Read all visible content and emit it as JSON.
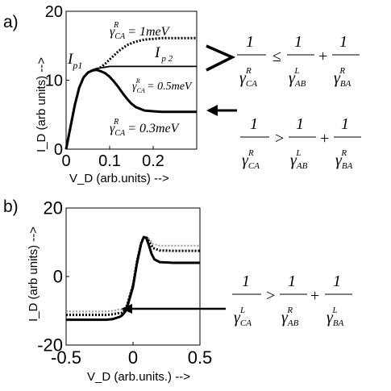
{
  "panels": [
    {
      "label": "a)",
      "chart_data": {
        "type": "line",
        "xlabel": "V_D (arb.units) -->",
        "ylabel": "I_D (arb units) -->",
        "xlim": [
          0,
          0.3
        ],
        "ylim": [
          0,
          20
        ],
        "xticks": [
          "0",
          "0.1",
          "0.2"
        ],
        "xtick_values": [
          0,
          0.1,
          0.2
        ],
        "yticks": [
          "0",
          "10",
          "20"
        ],
        "ytick_values": [
          0,
          10,
          20
        ],
        "grid": false,
        "series": [
          {
            "name": "γ_CA^R = 1meV",
            "style": "dotted",
            "x": [
              0,
              0.01,
              0.02,
              0.03,
              0.04,
              0.05,
              0.06,
              0.07,
              0.08,
              0.09,
              0.1,
              0.12,
              0.14,
              0.16,
              0.18,
              0.2,
              0.22,
              0.25,
              0.28,
              0.3
            ],
            "y": [
              0,
              3.2,
              6.4,
              8.9,
              10.4,
              11.1,
              11.4,
              11.6,
              11.9,
              12.4,
              13.0,
              14.2,
              15.1,
              15.6,
              15.9,
              16.0,
              16.1,
              16.1,
              16.1,
              16.1
            ]
          },
          {
            "name": "I_p2",
            "style": "thin",
            "x": [
              0,
              0.01,
              0.02,
              0.03,
              0.04,
              0.05,
              0.06,
              0.07,
              0.08,
              0.09,
              0.1,
              0.12,
              0.15,
              0.2,
              0.25,
              0.3
            ],
            "y": [
              0,
              3.2,
              6.4,
              8.9,
              10.4,
              11.1,
              11.5,
              11.7,
              11.8,
              11.9,
              12.0,
              12.0,
              12.0,
              12.0,
              12.0,
              12.0
            ]
          },
          {
            "name": "γ_CA^R = 0.5meV",
            "style": "solid",
            "x": [
              0,
              0.01,
              0.02,
              0.03,
              0.04,
              0.05,
              0.06,
              0.07,
              0.08,
              0.09,
              0.1,
              0.11,
              0.12,
              0.13,
              0.14,
              0.15,
              0.16,
              0.18,
              0.2,
              0.22,
              0.25,
              0.3
            ],
            "y": [
              0,
              3.2,
              6.4,
              8.9,
              10.4,
              11.1,
              11.4,
              11.5,
              11.3,
              11.0,
              10.5,
              9.8,
              9.0,
              8.1,
              7.3,
              6.6,
              6.1,
              5.6,
              5.5,
              5.4,
              5.4,
              5.4
            ]
          }
        ],
        "annotations": {
          "curve_top": {
            "gamma": "γ",
            "sub": "CA",
            "sup": "R",
            "text": " = 1meV"
          },
          "curve_mid": {
            "gamma": "γ",
            "sub": "CA",
            "sup": "R",
            "text": " = 0.5meV"
          },
          "curve_low": {
            "gamma": "γ",
            "sub": "CA",
            "sup": "R",
            "text": " = 0.3meV"
          },
          "ip1": {
            "main": "I",
            "sub": "p1"
          },
          "ip2": {
            "main": "I",
            "sub": "p 2"
          }
        }
      },
      "formulas": [
        {
          "relation": "≤",
          "terms": [
            {
              "num": "1",
              "gamma": "γ",
              "sub": "CA",
              "sup": "R"
            },
            {
              "num": "1",
              "gamma": "γ",
              "sub": "AB",
              "sup": "L"
            },
            {
              "num": "1",
              "gamma": "γ",
              "sub": "BA",
              "sup": "R"
            }
          ],
          "plus": "+"
        },
        {
          "relation": ">",
          "terms": [
            {
              "num": "1",
              "gamma": "γ",
              "sub": "CA",
              "sup": "R"
            },
            {
              "num": "1",
              "gamma": "γ",
              "sub": "AB",
              "sup": "L"
            },
            {
              "num": "1",
              "gamma": "γ",
              "sub": "BA",
              "sup": "R"
            }
          ],
          "plus": "+"
        }
      ]
    },
    {
      "label": "b)",
      "chart_data": {
        "type": "line",
        "xlabel": "V_D (arb.units.) -->",
        "ylabel": "I_D (arb units) -->",
        "xlim": [
          -0.5,
          0.5
        ],
        "ylim": [
          -20,
          20
        ],
        "xticks": [
          "-0.5",
          "0",
          "0.5"
        ],
        "xtick_values": [
          -0.5,
          0,
          0.5
        ],
        "yticks": [
          "-20",
          "0",
          "20"
        ],
        "ytick_values": [
          -20,
          0,
          20
        ],
        "grid": false,
        "series": [
          {
            "name": "light",
            "style": "light",
            "x": [
              -0.5,
              -0.3,
              -0.2,
              -0.15,
              -0.1,
              -0.08,
              -0.05,
              0,
              0.03,
              0.06,
              0.08,
              0.1,
              0.12,
              0.15,
              0.2,
              0.3,
              0.5
            ],
            "y": [
              -10.2,
              -10.2,
              -10.2,
              -10.0,
              -9.5,
              -9.8,
              -8.5,
              -2.0,
              5.0,
              10.0,
              11.5,
              11.6,
              11.0,
              9.5,
              9.0,
              9.0,
              9.0
            ]
          },
          {
            "name": "dotted",
            "style": "dotted",
            "x": [
              -0.5,
              -0.3,
              -0.2,
              -0.15,
              -0.1,
              -0.08,
              -0.05,
              0,
              0.03,
              0.06,
              0.08,
              0.1,
              0.12,
              0.15,
              0.2,
              0.3,
              0.5
            ],
            "y": [
              -11.2,
              -11.2,
              -11.2,
              -11.0,
              -10.6,
              -10.6,
              -9.2,
              -2.5,
              4.5,
              9.8,
              11.5,
              11.5,
              10.2,
              8.3,
              7.6,
              7.5,
              7.5
            ]
          },
          {
            "name": "solid",
            "style": "solid",
            "x": [
              -0.5,
              -0.3,
              -0.2,
              -0.15,
              -0.1,
              -0.08,
              -0.05,
              0,
              0.03,
              0.06,
              0.08,
              0.1,
              0.12,
              0.14,
              0.16,
              0.2,
              0.3,
              0.5
            ],
            "y": [
              -12.6,
              -12.6,
              -12.6,
              -12.4,
              -11.8,
              -11.3,
              -9.8,
              -3.0,
              4.0,
              9.5,
              11.5,
              11.2,
              9.0,
              6.5,
              5.0,
              4.2,
              4.0,
              4.0
            ]
          }
        ]
      },
      "formulas": [
        {
          "relation": ">",
          "terms": [
            {
              "num": "1",
              "gamma": "γ",
              "sub": "CA",
              "sup": "L"
            },
            {
              "num": "1",
              "gamma": "γ",
              "sub": "AB",
              "sup": "R"
            },
            {
              "num": "1",
              "gamma": "γ",
              "sub": "BA",
              "sup": "L"
            }
          ],
          "plus": "+"
        }
      ]
    }
  ]
}
